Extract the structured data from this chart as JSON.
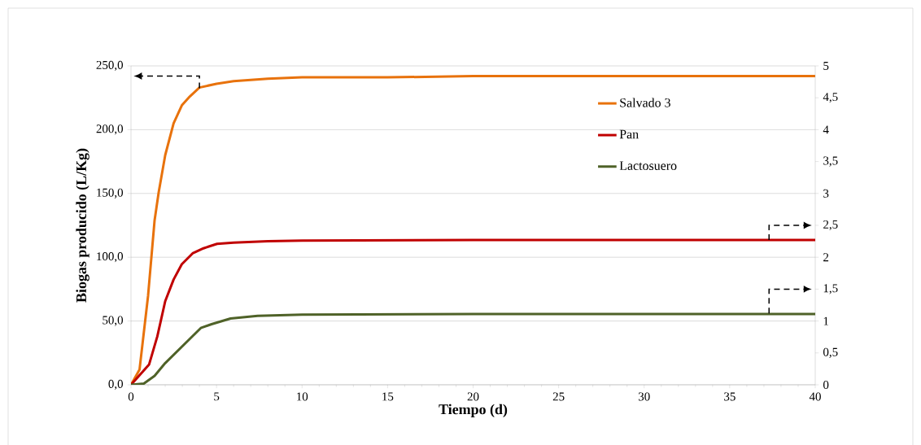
{
  "chart_data": {
    "type": "line",
    "xlabel": "Tiempo (d)",
    "ylabel": "Biogas producido (L/Kg)",
    "xlim": [
      0,
      40
    ],
    "xticks": [
      0,
      5,
      10,
      15,
      20,
      25,
      30,
      35,
      40
    ],
    "ylim": [
      0,
      250
    ],
    "yticks": [
      {
        "value": 0,
        "label": "0,0"
      },
      {
        "value": 50,
        "label": "50,0"
      },
      {
        "value": 100,
        "label": "100,0"
      },
      {
        "value": 150,
        "label": "150,0"
      },
      {
        "value": 200,
        "label": "200,0"
      },
      {
        "value": 250,
        "label": "250,0"
      }
    ],
    "y2lim": [
      0,
      5
    ],
    "y2ticks": [
      0,
      {
        "value": 0.5,
        "label": "0,5"
      },
      1,
      {
        "value": 1.5,
        "label": "1,5"
      },
      2,
      {
        "value": 2.5,
        "label": "2,5"
      },
      3,
      {
        "value": 3.5,
        "label": "3,5"
      },
      4,
      {
        "value": 4.5,
        "label": "4,5"
      },
      5
    ],
    "grid": "y",
    "legend": "right",
    "marker": "none",
    "line_style": "solid",
    "series": [
      {
        "name": "Salvado 3",
        "color": "#e8720c",
        "axis": "y",
        "x": [
          0,
          0.5,
          1,
          1.38,
          1.62,
          2,
          2.49,
          2.97,
          3.44,
          4,
          5,
          6,
          8,
          10,
          15,
          20,
          30,
          40
        ],
        "values": [
          0,
          12,
          70,
          129,
          151,
          180,
          205,
          219,
          226,
          233,
          236,
          238,
          240,
          241,
          241,
          242,
          242,
          242
        ]
      },
      {
        "name": "Pan",
        "color": "#c00000",
        "axis": "y2",
        "x": [
          0,
          1.06,
          1.54,
          2,
          2.49,
          2.97,
          3.6,
          4.24,
          5.03,
          6,
          8,
          10,
          20,
          40
        ],
        "values": [
          0,
          0.32,
          0.76,
          1.31,
          1.65,
          1.89,
          2.06,
          2.14,
          2.21,
          2.23,
          2.25,
          2.26,
          2.27,
          2.27
        ]
      },
      {
        "name": "Lactosuero",
        "color": "#4f6228",
        "axis": "y2",
        "x": [
          0,
          0.75,
          1.38,
          2,
          4.08,
          4.71,
          5.82,
          7.4,
          10,
          20,
          40
        ],
        "values": [
          0,
          0.02,
          0.14,
          0.34,
          0.89,
          0.95,
          1.04,
          1.08,
          1.1,
          1.11,
          1.11
        ]
      }
    ]
  }
}
